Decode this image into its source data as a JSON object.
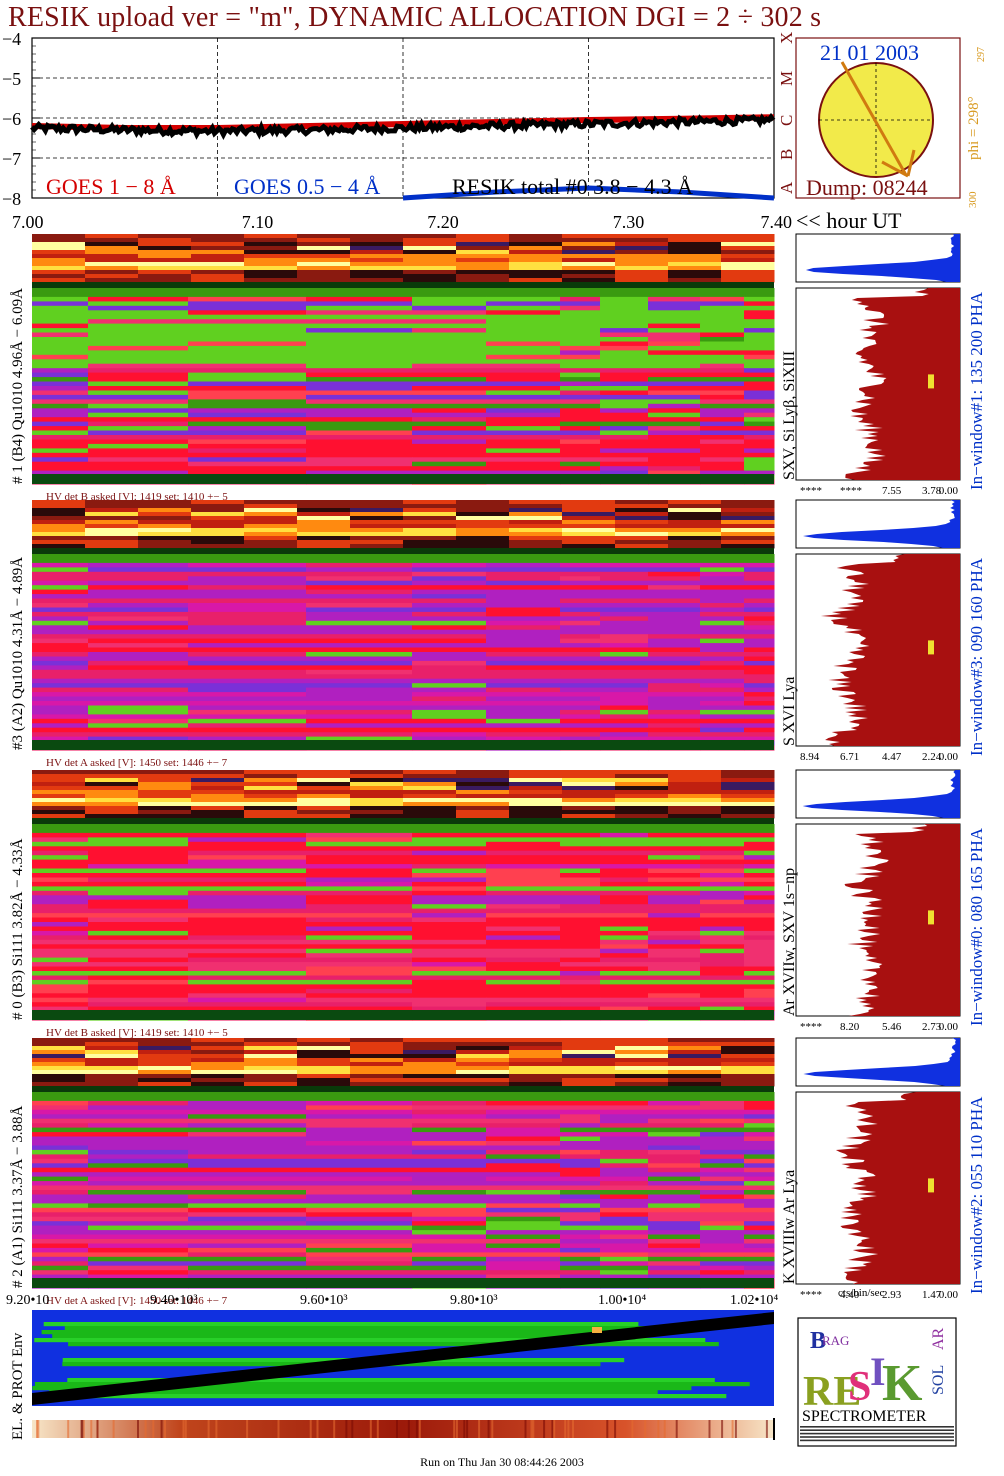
{
  "header": {
    "title": "RESIK upload ver = \"m\", DYNAMIC ALLOCATION  DGI =   2 ÷ 302 s"
  },
  "goes": {
    "ylabels": [
      "−4",
      "−5",
      "−6",
      "−7",
      "−8"
    ],
    "legend_goes18": "GOES 1 − 8 Å",
    "legend_goes054": "GOES 0.5 − 4 Å",
    "legend_resik": "RESIK total #0  3.8 − 4.3 Å",
    "xlabels": [
      "7.00",
      "7.10",
      "7.20",
      "7.30",
      "7.40"
    ],
    "xunit": "<< hour UT",
    "colors": {
      "goes18": "#d40000",
      "goes054": "#0030c8",
      "resik": "#000000"
    }
  },
  "sun": {
    "date": "21 01 2003",
    "dump": "Dump: 08244",
    "class_letters": [
      "X",
      "M",
      "C",
      "B",
      "A"
    ],
    "phi_label": "phi = 298°",
    "phi_sup": "297",
    "phi_bottom": "300"
  },
  "panels": [
    {
      "label": "# 1 (B4) Qu1010 4.96Å − 6.09Å",
      "hv": "HV det B asked [V]:  1419 set:  1410 +−    5",
      "line_label": "SXV, Si Lyβ, SiXIII",
      "pha": "In−window#1:  135 200 PHA",
      "ticks": [
        "****",
        "****",
        "7.55",
        "3.78",
        "0.00"
      ]
    },
    {
      "label": "#3 (A2) Qu1010  4.31Å − 4.89Å",
      "hv": "HV det A asked [V]:  1450 set:  1446 +−    7",
      "line_label": "S XVI Lya",
      "pha": "In−window#3:  090 160 PHA",
      "ticks": [
        "8.94",
        "6.71",
        "4.47",
        "2.24",
        "0.00"
      ]
    },
    {
      "label": "# 0 (B3) Si111  3.82Å − 4.33Å",
      "hv": "HV det B asked [V]:  1419 set:  1410 +−    5",
      "line_label": "Ar XVIIw,  SXV 1s−np",
      "pha": "In−window#0:  080 165 PHA",
      "ticks": [
        "****",
        "8.20",
        "5.46",
        "2.73",
        "0.00"
      ]
    },
    {
      "label": "# 2 (A1) Si111  3.37Å − 3.88Å",
      "hv": "HV det A asked [V]:  1450 set:  1446 +−    7",
      "line_label": "K XVIIIw  Ar Lya",
      "pha": "In−window#2:  055 110 PHA",
      "ticks": [
        "****",
        "4.40",
        "2.93",
        "1.47",
        "0.00"
      ]
    }
  ],
  "cts_label": "cts/bin/sec",
  "env": {
    "xlabels": [
      "9.20•10",
      "9.40•10³",
      "9.60•10³",
      "9.80•10³",
      "1.00•10⁴",
      "1.02•10⁴"
    ],
    "label": "EL. & PROT Env"
  },
  "logo": {
    "letters": [
      "B",
      "RAG",
      "RE",
      "S",
      "I",
      "K",
      "SOL",
      "AR"
    ],
    "name": "SPECTROMETER"
  },
  "footer": "Run on Thu Jan 30 08:44:26 2003",
  "chart_data": {
    "type": "line",
    "title": "RESIK upload ver = \"m\", DYNAMIC ALLOCATION  DGI =   2 ÷ 302 s",
    "xlabel": "hour UT",
    "ylabel": "",
    "xlim": [
      7.0,
      7.4
    ],
    "ylim": [
      -8,
      -4
    ],
    "x_ticks": [
      7.0,
      7.1,
      7.2,
      7.3,
      7.4
    ],
    "y_ticks": [
      -4,
      -5,
      -6,
      -7,
      -8
    ],
    "grid": true,
    "series": [
      {
        "name": "GOES 1 − 8 Å",
        "x": [
          7.0,
          7.05,
          7.1,
          7.15,
          7.2,
          7.25,
          7.3,
          7.35,
          7.4
        ],
        "values": [
          -6.2,
          -6.25,
          -6.25,
          -6.2,
          -6.15,
          -6.1,
          -6.05,
          -6.02,
          -5.98
        ]
      },
      {
        "name": "RESIK total #0  3.8 − 4.3 Å",
        "x": [
          7.0,
          7.05,
          7.1,
          7.15,
          7.2,
          7.25,
          7.3,
          7.35,
          7.4
        ],
        "values": [
          -6.25,
          -6.3,
          -6.33,
          -6.3,
          -6.25,
          -6.2,
          -6.15,
          -6.1,
          -6.05
        ]
      },
      {
        "name": "GOES 0.5 − 4 Å",
        "x": [
          7.2,
          7.25,
          7.3,
          7.35,
          7.4
        ],
        "values": [
          -8.0,
          -7.85,
          -7.75,
          -7.85,
          -8.0
        ]
      }
    ]
  }
}
